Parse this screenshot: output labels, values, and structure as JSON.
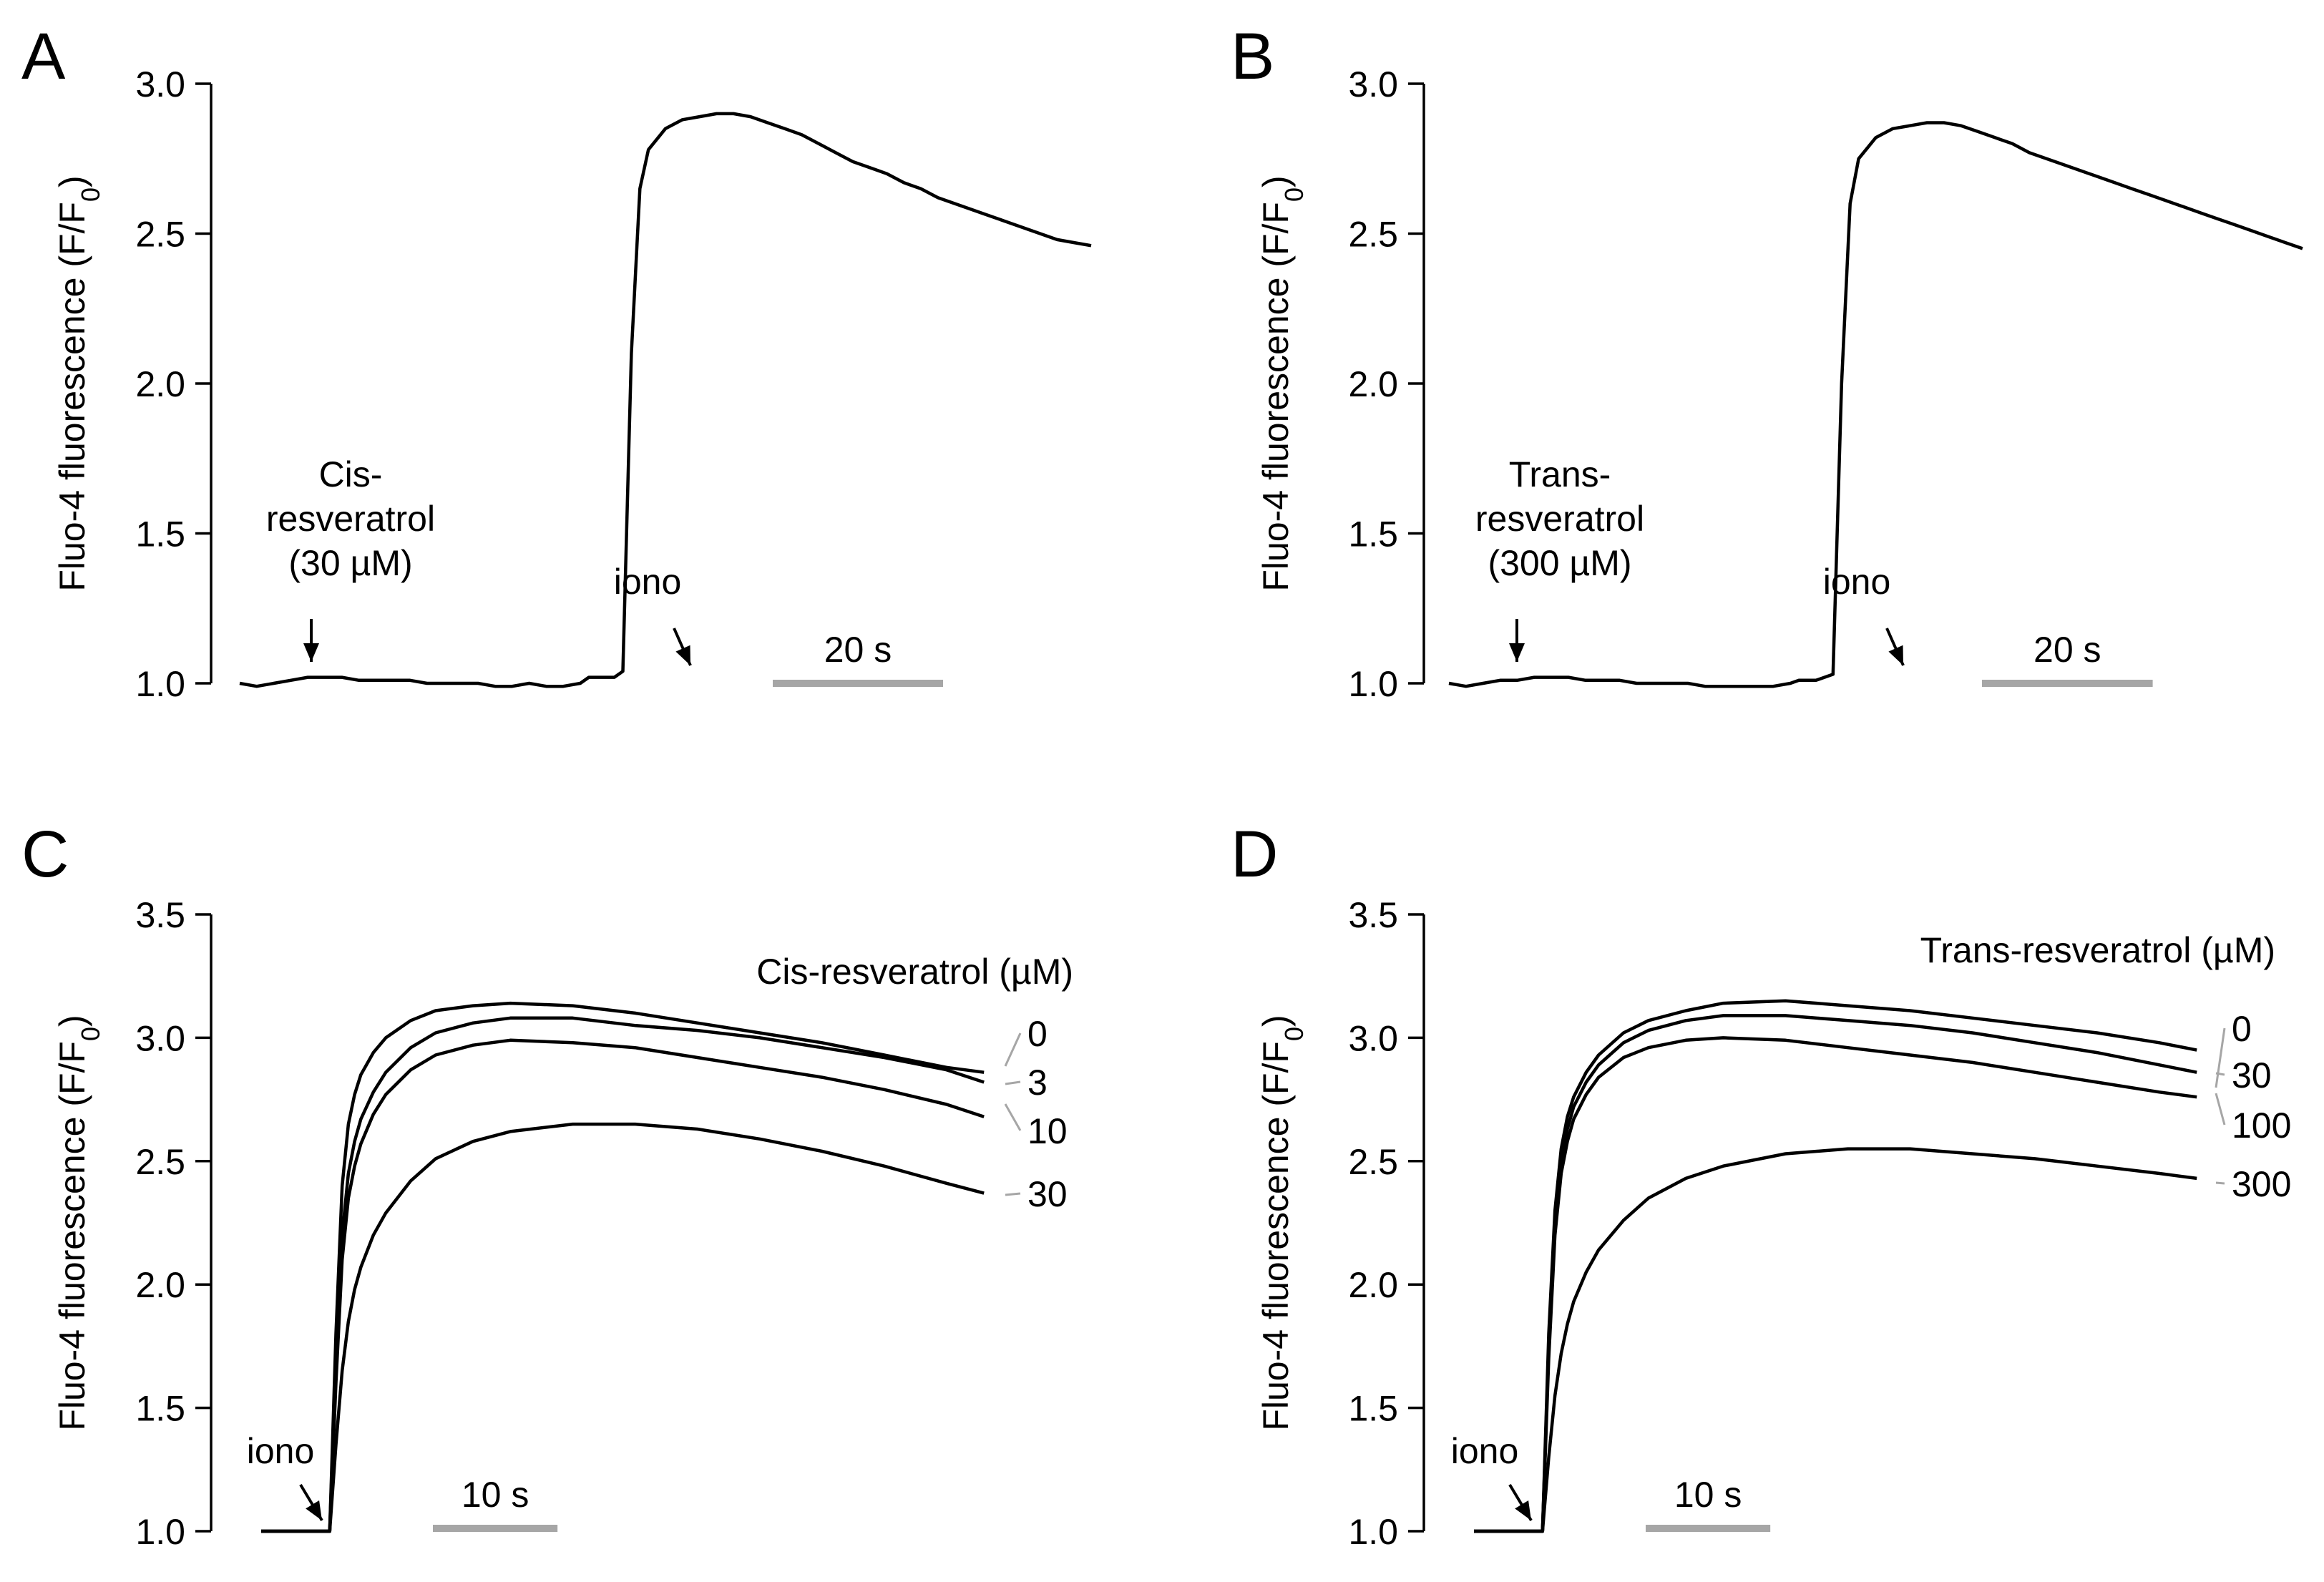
{
  "chart_data": [
    {
      "panel": "A",
      "type": "line",
      "ylabel": "Fluo-4  fluorescence (F/F",
      "ylabel_sub": "0",
      "ylabel_end": ")",
      "ylim": [
        1.0,
        3.0
      ],
      "yticks": [
        "1.0",
        "1.5",
        "2.0",
        "2.5",
        "3.0"
      ],
      "xlim": [
        0,
        100
      ],
      "scalebar_label": "20 s",
      "scalebar_length": 20,
      "scalebar_color": "#a6a6a6",
      "annotations": [
        {
          "lines": [
            "Cis-",
            "resveratrol",
            "(30 µM)"
          ],
          "x": 7
        },
        {
          "lines": [
            "iono"
          ],
          "x": 42
        }
      ],
      "series": [
        {
          "x": [
            0,
            2,
            4,
            6,
            8,
            10,
            12,
            14,
            16,
            18,
            20,
            22,
            24,
            26,
            28,
            30,
            32,
            34,
            36,
            38,
            40,
            41,
            42,
            43,
            44,
            45,
            46,
            47,
            48,
            50,
            52,
            54,
            56,
            58,
            60,
            62,
            64,
            66,
            68,
            70,
            72,
            74,
            76,
            78,
            80,
            82,
            84,
            86,
            88,
            90,
            92,
            94,
            96,
            98,
            100
          ],
          "y": [
            1.0,
            0.99,
            1.0,
            1.01,
            1.02,
            1.02,
            1.02,
            1.01,
            1.01,
            1.01,
            1.01,
            1.0,
            1.0,
            1.0,
            1.0,
            0.99,
            0.99,
            1.0,
            0.99,
            0.99,
            1.0,
            1.02,
            1.02,
            1.02,
            1.02,
            1.04,
            2.1,
            2.65,
            2.78,
            2.85,
            2.88,
            2.89,
            2.9,
            2.9,
            2.89,
            2.87,
            2.85,
            2.83,
            2.8,
            2.77,
            2.74,
            2.72,
            2.7,
            2.67,
            2.65,
            2.62,
            2.6,
            2.58,
            2.56,
            2.54,
            2.52,
            2.5,
            2.48,
            2.47,
            2.46
          ]
        }
      ]
    },
    {
      "panel": "B",
      "type": "line",
      "ylabel": "Fluo-4  fluorescence (F/F",
      "ylabel_sub": "0",
      "ylabel_end": ")",
      "ylim": [
        1.0,
        3.0
      ],
      "yticks": [
        "1.0",
        "1.5",
        "2.0",
        "2.5",
        "3.0"
      ],
      "xlim": [
        0,
        100
      ],
      "scalebar_label": "20 s",
      "scalebar_length": 20,
      "scalebar_color": "#a6a6a6",
      "annotations": [
        {
          "lines": [
            "Trans-",
            "resveratrol",
            "(300 µM)"
          ],
          "x": 7
        },
        {
          "lines": [
            "iono"
          ],
          "x": 42
        }
      ],
      "series": [
        {
          "x": [
            0,
            2,
            4,
            6,
            8,
            10,
            12,
            14,
            16,
            18,
            20,
            22,
            24,
            26,
            28,
            30,
            32,
            34,
            36,
            38,
            40,
            41,
            42,
            43,
            44,
            45,
            46,
            47,
            48,
            50,
            52,
            54,
            56,
            58,
            60,
            62,
            64,
            66,
            68,
            70,
            72,
            74,
            76,
            78,
            80,
            82,
            84,
            86,
            88,
            90,
            92,
            94,
            96,
            98,
            100
          ],
          "y": [
            1.0,
            0.99,
            1.0,
            1.01,
            1.01,
            1.02,
            1.02,
            1.02,
            1.01,
            1.01,
            1.01,
            1.0,
            1.0,
            1.0,
            1.0,
            0.99,
            0.99,
            0.99,
            0.99,
            0.99,
            1.0,
            1.01,
            1.01,
            1.01,
            1.02,
            1.03,
            2.0,
            2.6,
            2.75,
            2.82,
            2.85,
            2.86,
            2.87,
            2.87,
            2.86,
            2.84,
            2.82,
            2.8,
            2.77,
            2.75,
            2.73,
            2.71,
            2.69,
            2.67,
            2.65,
            2.63,
            2.61,
            2.59,
            2.57,
            2.55,
            2.53,
            2.51,
            2.49,
            2.47,
            2.45
          ]
        }
      ]
    },
    {
      "panel": "C",
      "type": "line",
      "ylabel": "Fluo-4  fluorescence (F/F",
      "ylabel_sub": "0",
      "ylabel_end": ")",
      "ylim": [
        1.0,
        3.5
      ],
      "yticks": [
        "1.0",
        "1.5",
        "2.0",
        "2.5",
        "3.0",
        "3.5"
      ],
      "xlim": [
        0,
        60
      ],
      "scalebar_label": "10 s",
      "scalebar_length": 10,
      "scalebar_color": "#a6a6a6",
      "legend_title": "Cis-resveratrol (µM)",
      "annotations": [
        {
          "lines": [
            "iono"
          ],
          "x": 5.5
        }
      ],
      "series": [
        {
          "name": "0",
          "x": [
            0,
            3,
            5.5,
            6,
            6.5,
            7,
            7.5,
            8,
            9,
            10,
            12,
            14,
            17,
            20,
            25,
            30,
            35,
            40,
            45,
            50,
            55,
            58
          ],
          "y": [
            1.0,
            1.0,
            1.0,
            1.8,
            2.4,
            2.65,
            2.77,
            2.85,
            2.94,
            3.0,
            3.07,
            3.11,
            3.13,
            3.14,
            3.13,
            3.1,
            3.06,
            3.02,
            2.98,
            2.93,
            2.88,
            2.86
          ]
        },
        {
          "name": "3",
          "x": [
            0,
            3,
            5.5,
            6,
            6.5,
            7,
            7.5,
            8,
            9,
            10,
            12,
            14,
            17,
            20,
            25,
            30,
            35,
            40,
            45,
            50,
            55,
            58
          ],
          "y": [
            1.0,
            1.0,
            1.0,
            1.7,
            2.2,
            2.45,
            2.58,
            2.67,
            2.78,
            2.86,
            2.96,
            3.02,
            3.06,
            3.08,
            3.08,
            3.05,
            3.03,
            3.0,
            2.96,
            2.92,
            2.87,
            2.82
          ]
        },
        {
          "name": "10",
          "x": [
            0,
            3,
            5.5,
            6,
            6.5,
            7,
            7.5,
            8,
            9,
            10,
            12,
            14,
            17,
            20,
            25,
            30,
            35,
            40,
            45,
            50,
            55,
            58
          ],
          "y": [
            1.0,
            1.0,
            1.0,
            1.6,
            2.1,
            2.35,
            2.48,
            2.57,
            2.69,
            2.77,
            2.87,
            2.93,
            2.97,
            2.99,
            2.98,
            2.96,
            2.92,
            2.88,
            2.84,
            2.79,
            2.73,
            2.68
          ]
        },
        {
          "name": "30",
          "x": [
            0,
            3,
            5.5,
            6,
            6.5,
            7,
            7.5,
            8,
            9,
            10,
            12,
            14,
            17,
            20,
            25,
            30,
            35,
            40,
            45,
            50,
            55,
            58
          ],
          "y": [
            1.0,
            1.0,
            1.0,
            1.35,
            1.65,
            1.85,
            1.98,
            2.07,
            2.2,
            2.29,
            2.42,
            2.51,
            2.58,
            2.62,
            2.65,
            2.65,
            2.63,
            2.59,
            2.54,
            2.48,
            2.41,
            2.37
          ]
        }
      ]
    },
    {
      "panel": "D",
      "type": "line",
      "ylabel": "Fluo-4  fluorescence (F/F",
      "ylabel_sub": "0",
      "ylabel_end": ")",
      "ylim": [
        1.0,
        3.5
      ],
      "yticks": [
        "1.0",
        "1.5",
        "2.0",
        "2.5",
        "3.0",
        "3.5"
      ],
      "xlim": [
        0,
        60
      ],
      "scalebar_label": "10 s",
      "scalebar_length": 10,
      "scalebar_color": "#a6a6a6",
      "legend_title": "Trans-resveratrol (µM)",
      "annotations": [
        {
          "lines": [
            "iono"
          ],
          "x": 5.5
        }
      ],
      "series": [
        {
          "name": "0",
          "x": [
            0,
            3,
            5.5,
            6,
            6.5,
            7,
            7.5,
            8,
            9,
            10,
            12,
            14,
            17,
            20,
            25,
            30,
            35,
            40,
            45,
            50,
            55,
            58
          ],
          "y": [
            1.0,
            1.0,
            1.0,
            1.8,
            2.3,
            2.55,
            2.68,
            2.76,
            2.86,
            2.93,
            3.02,
            3.07,
            3.11,
            3.14,
            3.15,
            3.13,
            3.11,
            3.08,
            3.05,
            3.02,
            2.98,
            2.95
          ]
        },
        {
          "name": "30",
          "x": [
            0,
            3,
            5.5,
            6,
            6.5,
            7,
            7.5,
            8,
            9,
            10,
            12,
            14,
            17,
            20,
            25,
            30,
            35,
            40,
            45,
            50,
            55,
            58
          ],
          "y": [
            1.0,
            1.0,
            1.0,
            1.75,
            2.25,
            2.5,
            2.63,
            2.72,
            2.82,
            2.89,
            2.98,
            3.03,
            3.07,
            3.09,
            3.09,
            3.07,
            3.05,
            3.02,
            2.98,
            2.94,
            2.89,
            2.86
          ]
        },
        {
          "name": "100",
          "x": [
            0,
            3,
            5.5,
            6,
            6.5,
            7,
            7.5,
            8,
            9,
            10,
            12,
            14,
            17,
            20,
            25,
            30,
            35,
            40,
            45,
            50,
            55,
            58
          ],
          "y": [
            1.0,
            1.0,
            1.0,
            1.7,
            2.2,
            2.45,
            2.58,
            2.67,
            2.77,
            2.84,
            2.92,
            2.96,
            2.99,
            3.0,
            2.99,
            2.96,
            2.93,
            2.9,
            2.86,
            2.82,
            2.78,
            2.76
          ]
        },
        {
          "name": "300",
          "x": [
            0,
            3,
            5.5,
            6,
            6.5,
            7,
            7.5,
            8,
            9,
            10,
            12,
            14,
            17,
            20,
            25,
            30,
            35,
            40,
            45,
            50,
            55,
            58
          ],
          "y": [
            1.0,
            1.0,
            1.0,
            1.3,
            1.55,
            1.72,
            1.84,
            1.93,
            2.05,
            2.14,
            2.26,
            2.35,
            2.43,
            2.48,
            2.53,
            2.55,
            2.55,
            2.53,
            2.51,
            2.48,
            2.45,
            2.43
          ]
        }
      ]
    }
  ]
}
